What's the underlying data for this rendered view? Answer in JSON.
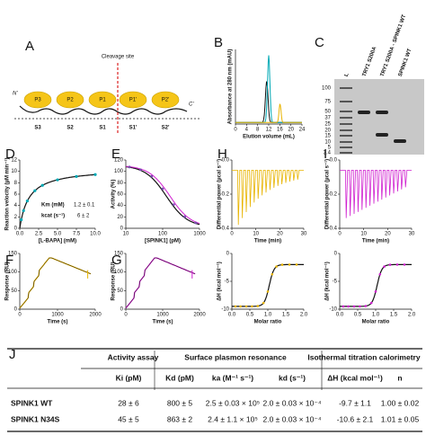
{
  "figure": {
    "A": {
      "label": "A",
      "cleavage": "Cleavage site",
      "n_term": "N'",
      "c_term": "C'",
      "residues": [
        "P3",
        "P2",
        "P1",
        "P1'",
        "P2'"
      ],
      "subsites": [
        "S3",
        "S2",
        "S1",
        "S1'",
        "S2'"
      ]
    },
    "C": {
      "label": "C",
      "ladder": [
        "100",
        "75",
        "50",
        "37",
        "25",
        "20",
        "15",
        "10",
        "5",
        "3.4"
      ],
      "lanes": [
        "L",
        "TRY1 S200A",
        "TRY1 S200A - SPINK1 WT",
        "SPINK1 WT"
      ]
    },
    "plots": [
      {
        "label": "B",
        "ylabel": "Absorbance at 280 nm (mAU)",
        "xlabel": "Elution volume (mL)",
        "xticks": [
          "0",
          "4",
          "8",
          "12",
          "16",
          "20",
          "24"
        ],
        "yticks": []
      },
      {
        "label": "D",
        "ylabel": "Reaction velocity (µM min⁻¹)",
        "xlabel": "[L-BAPA] (mM)",
        "xticks": [
          "0.0",
          "2.5",
          "5.0",
          "7.5",
          "10.0"
        ],
        "yticks": [
          "0",
          "2",
          "4",
          "6",
          "8",
          "10",
          "12"
        ]
      },
      {
        "label": "E",
        "ylabel": "Activity (%)",
        "xlabel": "[SPINK1] (pM)",
        "xticks": [
          "10",
          "100",
          "1000"
        ],
        "yticks": [
          "0",
          "20",
          "40",
          "60",
          "80",
          "100",
          "120"
        ]
      },
      {
        "label": "H",
        "ylabel": "Differential power (µcal s⁻¹)",
        "xlabel": "Time (min)",
        "xticks": [
          "0",
          "10",
          "20",
          "30"
        ],
        "yticks": [
          "-0.4",
          "-0.2",
          "0.0"
        ]
      },
      {
        "label": "I",
        "ylabel": "Differential power (µcal s⁻¹)",
        "xlabel": "Time (min)",
        "xticks": [
          "0",
          "10",
          "20",
          "30"
        ],
        "yticks": [
          "-0.4",
          "-0.2",
          "0.0"
        ]
      },
      {
        "label": "F",
        "ylabel": "Response (RU)",
        "xlabel": "Time (s)",
        "xticks": [
          "0",
          "1000",
          "2000"
        ],
        "yticks": [
          "0",
          "50",
          "100",
          "150"
        ]
      },
      {
        "label": "G",
        "ylabel": "Response (RU)",
        "xlabel": "Time (s)",
        "xticks": [
          "0",
          "1000",
          "2000"
        ],
        "yticks": [
          "0",
          "50",
          "100",
          "150"
        ]
      },
      {
        "ylabel": "ΔH (kcal mol⁻¹)",
        "xlabel": "Molar ratio",
        "xticks": [
          "0.0",
          "0.5",
          "1.0",
          "1.5",
          "2.0"
        ],
        "yticks": [
          "-10",
          "-5",
          "0"
        ]
      },
      {
        "ylabel": "ΔH (kcal mol⁻¹)",
        "xlabel": "Molar ratio",
        "xticks": [
          "0.0",
          "0.5",
          "1.0",
          "1.5",
          "2.0"
        ],
        "yticks": [
          "-10",
          "-5",
          "0"
        ]
      }
    ],
    "D_params": {
      "km": "Km (mM)",
      "km_value": "1.2 ± 0.1",
      "kcat": "kcat (s⁻¹)",
      "kcat_value": "6 ± 2"
    },
    "J": {
      "label": "J",
      "groups": [
        "Activity assay",
        "Surface plasmon resonance",
        "Isothermal titration calorimetry"
      ],
      "columns": [
        "Ki (pM)",
        "Kd (pM)",
        "ka (M⁻¹ s⁻¹)",
        "kd (s⁻¹)",
        "ΔH (kcal mol⁻¹)",
        "n"
      ],
      "rows": [
        [
          "SPINK1 WT",
          "28 ± 6",
          "800 ± 5",
          "2.5 ± 0.03 × 10⁵",
          "2.0 ± 0.03 × 10⁻⁴",
          "-9.7 ± 1.1",
          "1.00 ± 0.02"
        ],
        [
          "SPINK1 N34S",
          "45 ± 5",
          "863 ± 2",
          "2.4 ± 1.1 × 10⁵",
          "2.0 ± 0.03 × 10⁻⁴",
          "-10.6 ± 2.1",
          "1.01 ± 0.05"
        ]
      ]
    }
  }
}
